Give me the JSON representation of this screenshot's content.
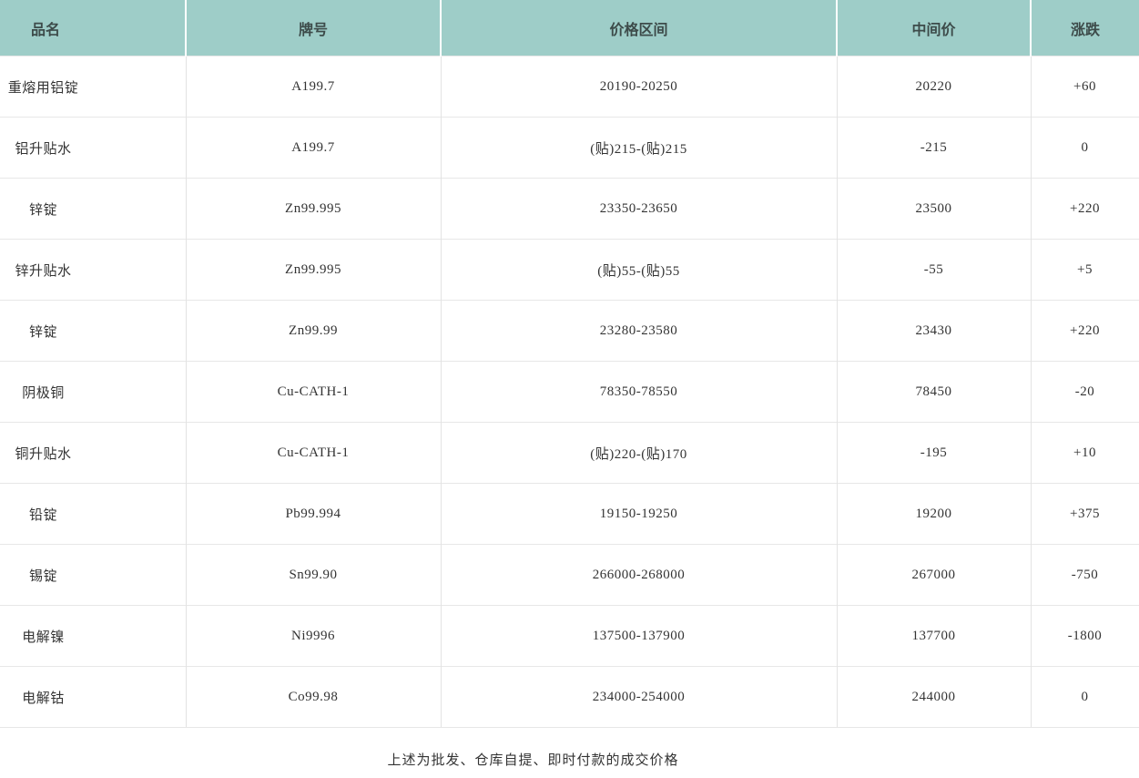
{
  "colors": {
    "header_bg": "#9ecdc8",
    "row_border": "#e7e7e7",
    "column_border": "#e3e3e3",
    "text": "#333333"
  },
  "table": {
    "headers": {
      "name": "品名",
      "grade": "牌号",
      "range": "价格区间",
      "mid": "中间价",
      "change": "涨跌"
    },
    "rows": [
      {
        "name": "重熔用铝锭",
        "grade": "A199.7",
        "range": "20190-20250",
        "mid": "20220",
        "change": "+60"
      },
      {
        "name": "铝升贴水",
        "grade": "A199.7",
        "range": "(贴)215-(贴)215",
        "mid": "-215",
        "change": "0"
      },
      {
        "name": "锌锭",
        "grade": "Zn99.995",
        "range": "23350-23650",
        "mid": "23500",
        "change": "+220"
      },
      {
        "name": "锌升贴水",
        "grade": "Zn99.995",
        "range": "(贴)55-(贴)55",
        "mid": "-55",
        "change": "+5"
      },
      {
        "name": "锌锭",
        "grade": "Zn99.99",
        "range": "23280-23580",
        "mid": "23430",
        "change": "+220"
      },
      {
        "name": "阴极铜",
        "grade": "Cu-CATH-1",
        "range": "78350-78550",
        "mid": "78450",
        "change": "-20"
      },
      {
        "name": "铜升贴水",
        "grade": "Cu-CATH-1",
        "range": "(贴)220-(贴)170",
        "mid": "-195",
        "change": "+10"
      },
      {
        "name": "铅锭",
        "grade": "Pb99.994",
        "range": "19150-19250",
        "mid": "19200",
        "change": "+375"
      },
      {
        "name": "锡锭",
        "grade": "Sn99.90",
        "range": "266000-268000",
        "mid": "267000",
        "change": "-750"
      },
      {
        "name": "电解镍",
        "grade": "Ni9996",
        "range": "137500-137900",
        "mid": "137700",
        "change": "-1800"
      },
      {
        "name": "电解钴",
        "grade": "Co99.98",
        "range": "234000-254000",
        "mid": "244000",
        "change": "0"
      }
    ]
  },
  "footer": {
    "note": "上述为批发、仓库自提、即时付款的成交价格"
  }
}
